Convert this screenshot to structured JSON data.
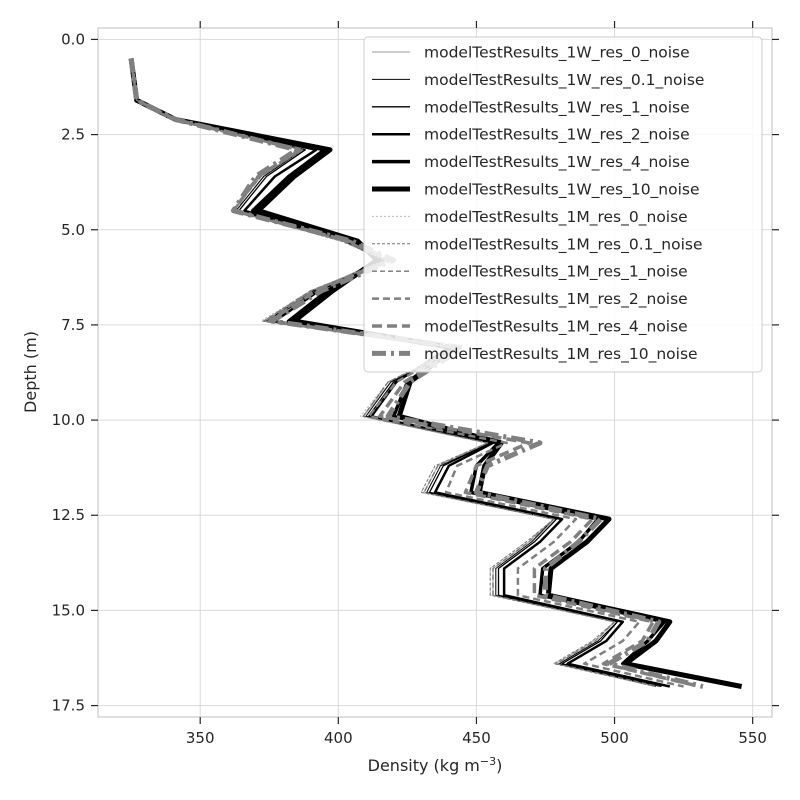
{
  "chart_data": {
    "type": "line",
    "title": "",
    "xlabel_main": "Density (kg m",
    "xlabel_sup": "−3",
    "xlabel_end": ")",
    "ylabel": "Depth (m)",
    "xlim": [
      313,
      557
    ],
    "ylim": [
      17.8,
      -0.3
    ],
    "y_inverted": true,
    "grid": true,
    "legend_position": "top-right",
    "x_ticks": [
      350,
      400,
      450,
      500,
      550
    ],
    "x_tick_labels": [
      "350",
      "400",
      "450",
      "500",
      "550"
    ],
    "y_ticks": [
      0,
      2.5,
      5,
      7.5,
      10,
      12.5,
      15,
      17.5
    ],
    "y_tick_labels": [
      "0.0",
      "2.5",
      "5.0",
      "7.5",
      "10.0",
      "12.5",
      "15.0",
      "17.5"
    ],
    "base_profile": {
      "depth": [
        0.5,
        1.6,
        2.1,
        2.9,
        3.6,
        4.5,
        5.3,
        5.8,
        6.6,
        7.4,
        8.1,
        9.0,
        9.9,
        10.6,
        11.2,
        11.9,
        12.6,
        13.2,
        13.9,
        14.6,
        15.3,
        15.8,
        16.4,
        17.0
      ],
      "density": [
        325,
        327,
        340,
        387,
        372,
        362,
        402,
        418,
        390,
        372,
        445,
        418,
        408,
        454,
        435,
        430,
        478,
        468,
        455,
        455,
        500,
        492,
        478,
        515
      ]
    },
    "series": [
      {
        "name": "modelTestResults_1W_res_0_noise",
        "color": "#bbbbbb",
        "width": 1.5,
        "dash": "",
        "offsets": [
          0,
          0,
          0,
          1,
          1,
          1,
          0,
          -2,
          1,
          1,
          -3,
          1,
          1,
          0,
          1,
          1,
          0,
          1,
          1,
          1,
          0,
          1,
          1,
          0
        ]
      },
      {
        "name": "modelTestResults_1W_res_0.1_noise",
        "color": "#000000",
        "width": 1,
        "dash": "",
        "offsets": [
          0,
          0,
          0,
          0,
          1,
          1,
          0,
          -1,
          1,
          2,
          -1,
          1,
          2,
          1,
          2,
          2,
          0,
          2,
          2,
          2,
          1,
          2,
          2,
          0
        ]
      },
      {
        "name": "modelTestResults_1W_res_1_noise",
        "color": "#000000",
        "width": 1.3,
        "dash": "",
        "offsets": [
          0,
          0,
          0,
          1,
          2,
          2,
          0,
          -1,
          2,
          3,
          -1,
          2,
          3,
          1,
          3,
          3,
          1,
          3,
          3,
          3,
          1,
          3,
          3,
          2
        ]
      },
      {
        "name": "modelTestResults_1W_res_2_noise",
        "color": "#000000",
        "width": 2.5,
        "dash": "",
        "offsets": [
          0,
          0,
          1,
          5,
          5,
          4,
          2,
          -2,
          3,
          5,
          -5,
          3,
          4,
          2,
          5,
          5,
          3,
          5,
          5,
          5,
          3,
          5,
          5,
          5
        ]
      },
      {
        "name": "modelTestResults_1W_res_4_noise",
        "color": "#000000",
        "width": 3.5,
        "dash": "",
        "offsets": [
          0,
          0,
          1,
          8,
          10,
          7,
          4,
          -3,
          6,
          10,
          -2,
          7,
          12,
          4,
          15,
          18,
          16,
          19,
          19,
          18,
          18,
          20,
          25,
          30
        ]
      },
      {
        "name": "modelTestResults_1W_res_10_noise",
        "color": "#000000",
        "width": 5,
        "dash": "",
        "offsets": [
          0,
          0,
          1,
          10,
          12,
          9,
          5,
          -4,
          8,
          12,
          -3,
          8,
          14,
          5,
          18,
          21,
          20,
          22,
          22,
          21,
          20,
          23,
          26,
          31
        ]
      },
      {
        "name": "modelTestResults_1M_res_0_noise",
        "color": "#bbbbbb",
        "width": 1,
        "dash": "2,2",
        "offsets": [
          0,
          0,
          0,
          -1,
          0,
          0,
          -1,
          -1,
          0,
          0,
          -3,
          0,
          0,
          0,
          0,
          0,
          0,
          0,
          0,
          0,
          0,
          0,
          0,
          0
        ]
      },
      {
        "name": "modelTestResults_1M_res_0.1_noise",
        "color": "#777777",
        "width": 1,
        "dash": "3,2",
        "offsets": [
          0,
          0,
          0,
          0,
          0,
          0,
          -1,
          0,
          0,
          1,
          -2,
          0,
          1,
          0,
          0,
          0,
          0,
          0,
          0,
          0,
          0,
          0,
          0,
          0
        ]
      },
      {
        "name": "modelTestResults_1M_res_1_noise",
        "color": "#777777",
        "width": 1.3,
        "dash": "5,3",
        "offsets": [
          0,
          0,
          0,
          0,
          0,
          0,
          0,
          0,
          0,
          1,
          -1,
          0,
          1,
          0,
          1,
          1,
          0,
          1,
          1,
          1,
          0,
          1,
          1,
          1
        ]
      },
      {
        "name": "modelTestResults_1M_res_2_noise",
        "color": "#808080",
        "width": 2.5,
        "dash": "7,4",
        "offsets": [
          0,
          0,
          0,
          -1,
          -1,
          0,
          1,
          0,
          1,
          2,
          -2,
          3,
          3,
          7,
          8,
          9,
          8,
          10,
          10,
          10,
          9,
          11,
          11,
          10
        ]
      },
      {
        "name": "modelTestResults_1M_res_4_noise",
        "color": "#808080",
        "width": 3.5,
        "dash": "10,5",
        "offsets": [
          0,
          0,
          1,
          -1,
          -1,
          0,
          2,
          1,
          2,
          3,
          -1,
          6,
          7,
          15,
          15,
          16,
          14,
          16,
          16,
          16,
          14,
          18,
          18,
          16
        ]
      },
      {
        "name": "modelTestResults_1M_res_10_noise",
        "color": "#808080",
        "width": 5,
        "dash": "14,5,3,5",
        "offsets": [
          0,
          0,
          1,
          -2,
          -2,
          0,
          3,
          2,
          4,
          4,
          0,
          8,
          10,
          19,
          19,
          20,
          17,
          19,
          20,
          20,
          16,
          20,
          20,
          17
        ]
      }
    ]
  }
}
